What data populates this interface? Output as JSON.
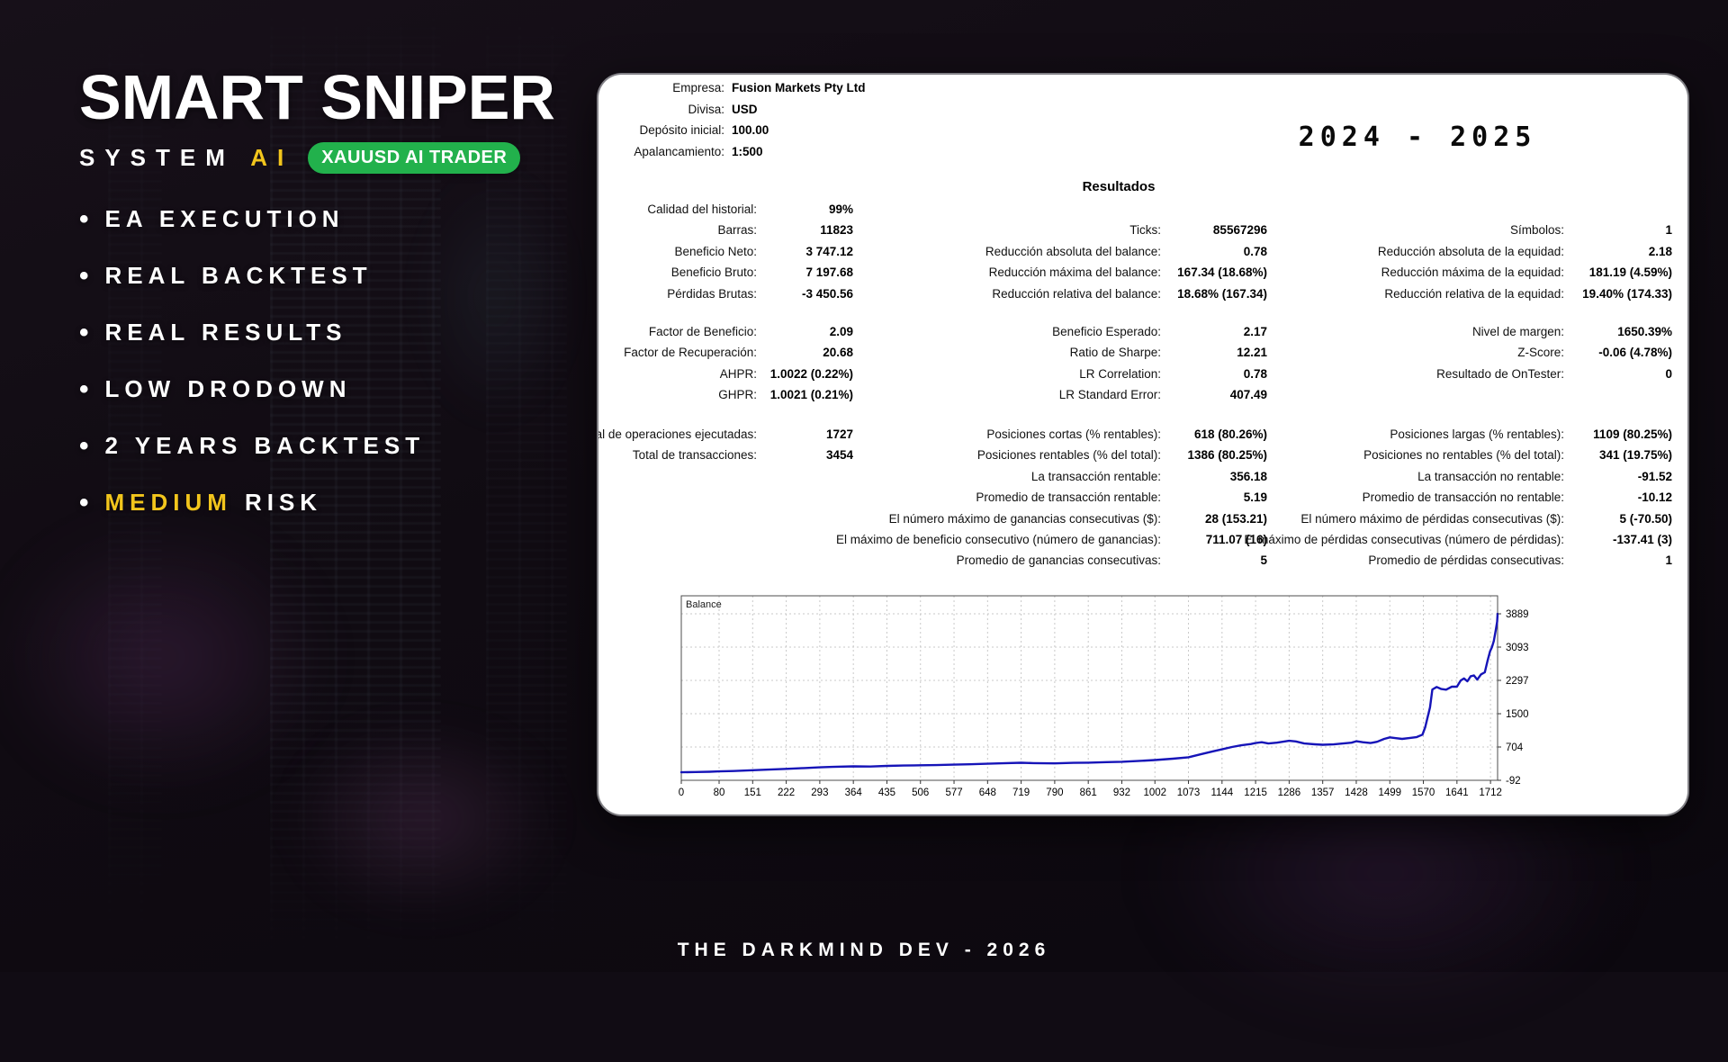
{
  "hero": {
    "title": "SMART SNIPER",
    "subtitle_prefix": "SYSTEM",
    "subtitle_accent": "AI",
    "badge": "XAUUSD AI TRADER",
    "bullet_char": "•",
    "accent_color": "#f2c51c",
    "badge_color": "#22b14c",
    "bullets": [
      {
        "text": "EA EXECUTION"
      },
      {
        "text": "REAL BACKTEST"
      },
      {
        "text": "REAL RESULTS"
      },
      {
        "text": "LOW DRODOWN"
      },
      {
        "text": "2 YEARS BACKTEST"
      },
      {
        "accent": "MEDIUM",
        "text": "RISK"
      }
    ]
  },
  "report": {
    "period": "2024 - 2025",
    "section_title": "Resultados",
    "account": [
      {
        "label": "Empresa:",
        "value": "Fusion Markets Pty Ltd"
      },
      {
        "label": "Divisa:",
        "value": "USD"
      },
      {
        "label": "Depósito inicial:",
        "value": "100.00"
      },
      {
        "label": "Apalancamiento:",
        "value": "1:500"
      }
    ],
    "bands": [
      {
        "columns": [
          {
            "row_offset": 0,
            "rows": [
              {
                "label": "Calidad del historial:",
                "value": "99%"
              },
              {
                "label": "Barras:",
                "value": "11823"
              },
              {
                "label": "Beneficio Neto:",
                "value": "3 747.12"
              },
              {
                "label": "Beneficio Bruto:",
                "value": "7 197.68"
              },
              {
                "label": "Pérdidas Brutas:",
                "value": "-3 450.56"
              }
            ]
          },
          {
            "row_offset": 1,
            "rows": [
              {
                "label": "Ticks:",
                "value": "85567296"
              },
              {
                "label": "Reducción absoluta del balance:",
                "value": "0.78"
              },
              {
                "label": "Reducción máxima del balance:",
                "value": "167.34 (18.68%)"
              },
              {
                "label": "Reducción relativa del balance:",
                "value": "18.68% (167.34)"
              }
            ]
          },
          {
            "row_offset": 1,
            "rows": [
              {
                "label": "Símbolos:",
                "value": "1"
              },
              {
                "label": "Reducción absoluta de la equidad:",
                "value": "2.18"
              },
              {
                "label": "Reducción máxima de la equidad:",
                "value": "181.19 (4.59%)"
              },
              {
                "label": "Reducción relativa de la equidad:",
                "value": "19.40% (174.33)"
              }
            ]
          }
        ]
      },
      {
        "columns": [
          {
            "row_offset": 0,
            "rows": [
              {
                "label": "Factor de Beneficio:",
                "value": "2.09"
              },
              {
                "label": "Factor de Recuperación:",
                "value": "20.68"
              },
              {
                "label": "AHPR:",
                "value": "1.0022 (0.22%)"
              },
              {
                "label": "GHPR:",
                "value": "1.0021 (0.21%)"
              }
            ]
          },
          {
            "row_offset": 0,
            "rows": [
              {
                "label": "Beneficio Esperado:",
                "value": "2.17"
              },
              {
                "label": "Ratio de Sharpe:",
                "value": "12.21"
              },
              {
                "label": "LR Correlation:",
                "value": "0.78"
              },
              {
                "label": "LR Standard Error:",
                "value": "407.49"
              }
            ]
          },
          {
            "row_offset": 0,
            "rows": [
              {
                "label": "Nivel de margen:",
                "value": "1650.39%"
              },
              {
                "label": "Z-Score:",
                "value": "-0.06 (4.78%)"
              },
              {
                "label": "Resultado de OnTester:",
                "value": "0"
              }
            ]
          }
        ]
      },
      {
        "columns": [
          {
            "row_offset": 0,
            "rows": [
              {
                "label": "Total de operaciones ejecutadas:",
                "value": "1727"
              },
              {
                "label": "Total de transacciones:",
                "value": "3454"
              }
            ]
          },
          {
            "row_offset": 0,
            "rows": [
              {
                "label": "Posiciones cortas (% rentables):",
                "value": "618 (80.26%)"
              },
              {
                "label": "Posiciones rentables (% del total):",
                "value": "1386 (80.25%)"
              },
              {
                "label": "La transacción rentable:",
                "value": "356.18"
              },
              {
                "label": "Promedio de transacción rentable:",
                "value": "5.19"
              },
              {
                "label": "El número máximo de ganancias consecutivas ($):",
                "value": "28 (153.21)"
              },
              {
                "label": "El máximo de beneficio consecutivo (número de ganancias):",
                "value": "711.07 (16)"
              },
              {
                "label": "Promedio de ganancias consecutivas:",
                "value": "5"
              }
            ]
          },
          {
            "row_offset": 0,
            "rows": [
              {
                "label": "Posiciones largas (% rentables):",
                "value": "1109 (80.25%)"
              },
              {
                "label": "Posiciones no rentables (% del total):",
                "value": "341 (19.75%)"
              },
              {
                "label": "La transacción no rentable:",
                "value": "-91.52"
              },
              {
                "label": "Promedio de transacción no rentable:",
                "value": "-10.12"
              },
              {
                "label": "El número máximo de pérdidas consecutivas ($):",
                "value": "5 (-70.50)"
              },
              {
                "label": "El máximo de pérdidas consecutivas (número de pérdidas):",
                "value": "-137.41 (3)"
              },
              {
                "label": "Promedio de pérdidas consecutivas:",
                "value": "1"
              }
            ]
          }
        ]
      }
    ]
  },
  "chart_data": {
    "type": "line",
    "title": "Balance",
    "xlabel": "",
    "ylabel": "",
    "grid": true,
    "line_color": "#1614b8",
    "x_range": [
      0,
      1727
    ],
    "y_axis": {
      "min": -92,
      "max": 3889
    },
    "x_ticks": [
      0,
      80,
      151,
      222,
      293,
      364,
      435,
      506,
      577,
      648,
      719,
      790,
      861,
      932,
      1002,
      1073,
      1144,
      1215,
      1286,
      1357,
      1428,
      1499,
      1570,
      1641,
      1712
    ],
    "y_ticks": [
      3889,
      3093,
      2297,
      1500,
      704,
      -92
    ],
    "series": [
      {
        "name": "Balance",
        "points": [
          [
            0,
            100
          ],
          [
            30,
            106
          ],
          [
            60,
            113
          ],
          [
            80,
            120
          ],
          [
            110,
            130
          ],
          [
            151,
            148
          ],
          [
            180,
            162
          ],
          [
            222,
            182
          ],
          [
            260,
            200
          ],
          [
            293,
            218
          ],
          [
            320,
            228
          ],
          [
            364,
            242
          ],
          [
            400,
            238
          ],
          [
            435,
            252
          ],
          [
            470,
            260
          ],
          [
            506,
            268
          ],
          [
            540,
            272
          ],
          [
            577,
            282
          ],
          [
            610,
            292
          ],
          [
            648,
            303
          ],
          [
            680,
            315
          ],
          [
            719,
            328
          ],
          [
            745,
            318
          ],
          [
            790,
            312
          ],
          [
            830,
            325
          ],
          [
            861,
            330
          ],
          [
            900,
            342
          ],
          [
            932,
            352
          ],
          [
            965,
            368
          ],
          [
            1002,
            392
          ],
          [
            1040,
            425
          ],
          [
            1073,
            458
          ],
          [
            1100,
            535
          ],
          [
            1125,
            600
          ],
          [
            1144,
            648
          ],
          [
            1165,
            705
          ],
          [
            1185,
            745
          ],
          [
            1205,
            775
          ],
          [
            1215,
            798
          ],
          [
            1228,
            818
          ],
          [
            1242,
            788
          ],
          [
            1260,
            808
          ],
          [
            1286,
            852
          ],
          [
            1300,
            838
          ],
          [
            1318,
            788
          ],
          [
            1340,
            768
          ],
          [
            1357,
            758
          ],
          [
            1380,
            766
          ],
          [
            1400,
            788
          ],
          [
            1418,
            808
          ],
          [
            1428,
            842
          ],
          [
            1442,
            818
          ],
          [
            1458,
            798
          ],
          [
            1472,
            828
          ],
          [
            1487,
            898
          ],
          [
            1499,
            935
          ],
          [
            1512,
            915
          ],
          [
            1525,
            898
          ],
          [
            1540,
            918
          ],
          [
            1555,
            938
          ],
          [
            1568,
            1000
          ],
          [
            1574,
            1180
          ],
          [
            1579,
            1420
          ],
          [
            1584,
            1650
          ],
          [
            1589,
            2080
          ],
          [
            1598,
            2140
          ],
          [
            1608,
            2090
          ],
          [
            1618,
            2075
          ],
          [
            1630,
            2145
          ],
          [
            1641,
            2145
          ],
          [
            1649,
            2295
          ],
          [
            1656,
            2345
          ],
          [
            1663,
            2275
          ],
          [
            1670,
            2395
          ],
          [
            1677,
            2415
          ],
          [
            1684,
            2315
          ],
          [
            1692,
            2440
          ],
          [
            1700,
            2490
          ],
          [
            1706,
            2780
          ],
          [
            1711,
            2990
          ],
          [
            1715,
            3090
          ],
          [
            1719,
            3240
          ],
          [
            1723,
            3490
          ],
          [
            1726,
            3700
          ],
          [
            1727,
            3889
          ]
        ]
      }
    ]
  },
  "page": {
    "footer": "THE DARKMIND DEV - 2026"
  }
}
